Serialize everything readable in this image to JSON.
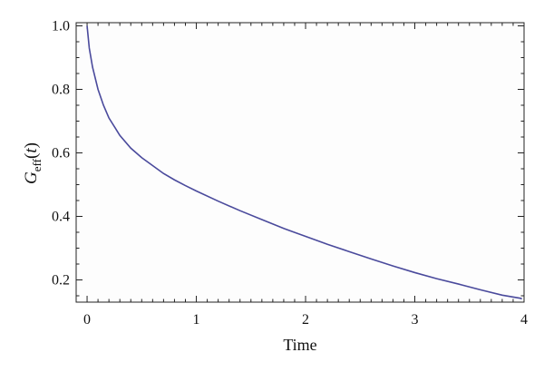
{
  "chart_data": {
    "type": "line",
    "title": "",
    "xlabel": "Time",
    "ylabel": {
      "main": "G",
      "subscript": "eff",
      "suffix_open": "(",
      "arg": "t",
      "suffix_close": ")"
    },
    "xlim": [
      -0.1,
      4.0
    ],
    "ylim": [
      0.13,
      1.01
    ],
    "x_ticks": [
      0,
      1,
      2,
      3,
      4
    ],
    "x_tick_labels": [
      "0",
      "1",
      "2",
      "3",
      "4"
    ],
    "y_ticks": [
      0.2,
      0.4,
      0.6,
      0.8,
      1.0
    ],
    "y_tick_labels": [
      "0.2",
      "0.4",
      "0.6",
      "0.8",
      "1.0"
    ],
    "grid": false,
    "series": [
      {
        "color": "#4a4a9c",
        "x": [
          0,
          0.02,
          0.05,
          0.1,
          0.15,
          0.2,
          0.3,
          0.4,
          0.5,
          0.6,
          0.7,
          0.8,
          0.9,
          1.0,
          1.2,
          1.4,
          1.6,
          1.8,
          2.0,
          2.2,
          2.4,
          2.6,
          2.8,
          3.0,
          3.2,
          3.4,
          3.6,
          3.8,
          3.97,
          3.98
        ],
        "y": [
          1.0,
          0.93,
          0.87,
          0.8,
          0.75,
          0.71,
          0.655,
          0.615,
          0.585,
          0.56,
          0.535,
          0.515,
          0.497,
          0.48,
          0.448,
          0.418,
          0.39,
          0.362,
          0.337,
          0.312,
          0.289,
          0.266,
          0.244,
          0.223,
          0.204,
          0.187,
          0.169,
          0.152,
          0.142,
          0.14
        ]
      }
    ]
  }
}
